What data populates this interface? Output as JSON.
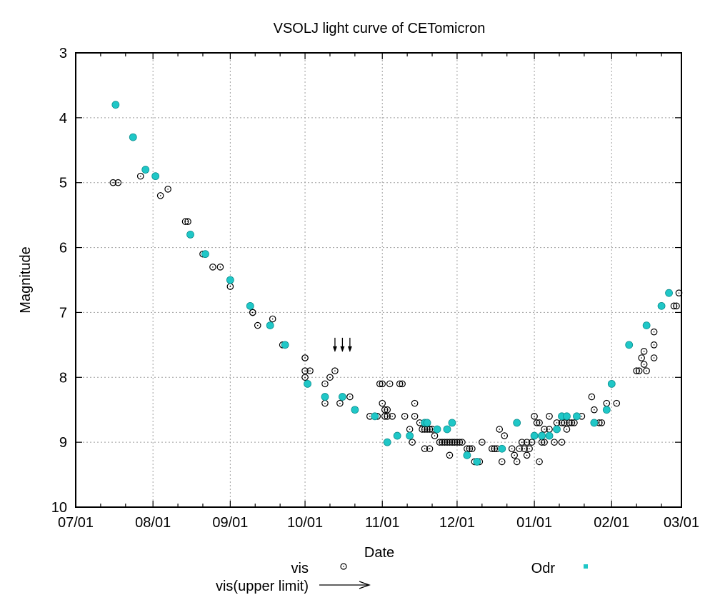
{
  "chart_data": {
    "type": "scatter",
    "title": "VSOLJ light curve of CETomicron",
    "xlabel": "Date",
    "ylabel": "Magnitude",
    "x_unit": "days since 07/01",
    "xlim": [
      0,
      243
    ],
    "ylim": [
      10,
      3
    ],
    "y_inverted": true,
    "grid": true,
    "x_ticks": [
      {
        "day": 0,
        "label": "07/01"
      },
      {
        "day": 31,
        "label": "08/01"
      },
      {
        "day": 62,
        "label": "09/01"
      },
      {
        "day": 92,
        "label": "10/01"
      },
      {
        "day": 123,
        "label": "11/01"
      },
      {
        "day": 153,
        "label": "12/01"
      },
      {
        "day": 184,
        "label": "01/01"
      },
      {
        "day": 215,
        "label": "02/01"
      },
      {
        "day": 243,
        "label": "03/01"
      }
    ],
    "y_ticks": [
      3,
      4,
      5,
      6,
      7,
      8,
      9,
      10
    ],
    "legend": {
      "placement": "bottom",
      "entries": [
        {
          "name": "vis",
          "marker": "open-circle"
        },
        {
          "name": "Odr",
          "marker": "filled-square",
          "color": "#1fc7c7"
        },
        {
          "name": "vis(upper limit)",
          "marker": "arrow"
        }
      ]
    },
    "series": [
      {
        "name": "vis",
        "marker": "open-circle",
        "points": [
          [
            15,
            5.0
          ],
          [
            17,
            5.0
          ],
          [
            26,
            4.9
          ],
          [
            34,
            5.2
          ],
          [
            37,
            5.1
          ],
          [
            44,
            5.6
          ],
          [
            45,
            5.6
          ],
          [
            51,
            6.1
          ],
          [
            55,
            6.3
          ],
          [
            58,
            6.3
          ],
          [
            62,
            6.6
          ],
          [
            70,
            6.9
          ],
          [
            71,
            7.0
          ],
          [
            71,
            7.0
          ],
          [
            73,
            7.2
          ],
          [
            78,
            7.2
          ],
          [
            79,
            7.1
          ],
          [
            83,
            7.5
          ],
          [
            92,
            7.7
          ],
          [
            92,
            7.7
          ],
          [
            92,
            7.9
          ],
          [
            92,
            8.0
          ],
          [
            94,
            7.9
          ],
          [
            100,
            8.1
          ],
          [
            100,
            8.4
          ],
          [
            102,
            8.0
          ],
          [
            104,
            7.9
          ],
          [
            106,
            8.4
          ],
          [
            110,
            8.3
          ],
          [
            118,
            8.6
          ],
          [
            121,
            8.6
          ],
          [
            122,
            8.1
          ],
          [
            123,
            8.1
          ],
          [
            123,
            8.4
          ],
          [
            124,
            8.5
          ],
          [
            124,
            8.6
          ],
          [
            125,
            8.5
          ],
          [
            125,
            8.6
          ],
          [
            126,
            8.1
          ],
          [
            127,
            8.6
          ],
          [
            130,
            8.1
          ],
          [
            131,
            8.1
          ],
          [
            132,
            8.6
          ],
          [
            134,
            8.8
          ],
          [
            135,
            9.0
          ],
          [
            136,
            8.4
          ],
          [
            136,
            8.6
          ],
          [
            138,
            8.7
          ],
          [
            139,
            8.8
          ],
          [
            140,
            8.8
          ],
          [
            140,
            9.1
          ],
          [
            141,
            8.8
          ],
          [
            142,
            8.8
          ],
          [
            142,
            9.1
          ],
          [
            143,
            8.8
          ],
          [
            144,
            8.9
          ],
          [
            146,
            9.0
          ],
          [
            147,
            9.0
          ],
          [
            148,
            9.0
          ],
          [
            149,
            9.0
          ],
          [
            150,
            9.2
          ],
          [
            150,
            9.0
          ],
          [
            151,
            9.0
          ],
          [
            152,
            9.0
          ],
          [
            153,
            9.0
          ],
          [
            154,
            9.0
          ],
          [
            155,
            9.0
          ],
          [
            157,
            9.1
          ],
          [
            158,
            9.1
          ],
          [
            159,
            9.1
          ],
          [
            160,
            9.3
          ],
          [
            161,
            9.3
          ],
          [
            162,
            9.3
          ],
          [
            163,
            9.0
          ],
          [
            167,
            9.1
          ],
          [
            168,
            9.1
          ],
          [
            169,
            9.1
          ],
          [
            170,
            8.8
          ],
          [
            171,
            9.3
          ],
          [
            172,
            8.9
          ],
          [
            175,
            9.1
          ],
          [
            176,
            9.2
          ],
          [
            177,
            9.3
          ],
          [
            178,
            9.1
          ],
          [
            179,
            9.0
          ],
          [
            180,
            9.1
          ],
          [
            181,
            9.2
          ],
          [
            181,
            9.0
          ],
          [
            182,
            9.1
          ],
          [
            183,
            9.0
          ],
          [
            184,
            8.6
          ],
          [
            185,
            8.7
          ],
          [
            186,
            9.3
          ],
          [
            186,
            8.7
          ],
          [
            187,
            9.0
          ],
          [
            188,
            9.0
          ],
          [
            188,
            8.8
          ],
          [
            190,
            8.6
          ],
          [
            190,
            8.8
          ],
          [
            192,
            9.0
          ],
          [
            193,
            8.7
          ],
          [
            195,
            9.0
          ],
          [
            195,
            8.7
          ],
          [
            196,
            8.7
          ],
          [
            197,
            8.8
          ],
          [
            198,
            8.7
          ],
          [
            199,
            8.7
          ],
          [
            200,
            8.7
          ],
          [
            203,
            8.6
          ],
          [
            207,
            8.3
          ],
          [
            208,
            8.5
          ],
          [
            210,
            8.7
          ],
          [
            211,
            8.7
          ],
          [
            213,
            8.4
          ],
          [
            217,
            8.4
          ],
          [
            225,
            7.9
          ],
          [
            226,
            7.9
          ],
          [
            227,
            7.7
          ],
          [
            228,
            7.6
          ],
          [
            228,
            7.8
          ],
          [
            229,
            7.9
          ],
          [
            232,
            7.3
          ],
          [
            232,
            7.5
          ],
          [
            232,
            7.7
          ],
          [
            240,
            6.9
          ],
          [
            241,
            6.9
          ],
          [
            242,
            6.7
          ]
        ]
      },
      {
        "name": "Odr",
        "marker": "filled-circle",
        "color": "#1fc7c7",
        "points": [
          [
            16,
            3.8
          ],
          [
            23,
            4.3
          ],
          [
            28,
            4.8
          ],
          [
            32,
            4.9
          ],
          [
            46,
            5.8
          ],
          [
            52,
            6.1
          ],
          [
            62,
            6.5
          ],
          [
            70,
            6.9
          ],
          [
            78,
            7.2
          ],
          [
            84,
            7.5
          ],
          [
            93,
            8.1
          ],
          [
            100,
            8.3
          ],
          [
            107,
            8.3
          ],
          [
            112,
            8.5
          ],
          [
            120,
            8.6
          ],
          [
            125,
            9.0
          ],
          [
            129,
            8.9
          ],
          [
            134,
            8.9
          ],
          [
            140,
            8.7
          ],
          [
            141,
            8.7
          ],
          [
            145,
            8.8
          ],
          [
            149,
            8.8
          ],
          [
            151,
            8.7
          ],
          [
            157,
            9.2
          ],
          [
            161,
            9.3
          ],
          [
            171,
            9.1
          ],
          [
            177,
            8.7
          ],
          [
            184,
            8.9
          ],
          [
            187,
            8.9
          ],
          [
            190,
            8.9
          ],
          [
            193,
            8.8
          ],
          [
            195,
            8.6
          ],
          [
            197,
            8.6
          ],
          [
            201,
            8.6
          ],
          [
            208,
            8.7
          ],
          [
            213,
            8.5
          ],
          [
            215,
            8.1
          ],
          [
            222,
            7.5
          ],
          [
            229,
            7.2
          ],
          [
            235,
            6.9
          ],
          [
            238,
            6.7
          ]
        ]
      },
      {
        "name": "vis(upper limit)",
        "marker": "arrow-down",
        "points": [
          [
            104,
            7.5
          ],
          [
            107,
            7.5
          ],
          [
            110,
            7.5
          ]
        ]
      }
    ]
  }
}
